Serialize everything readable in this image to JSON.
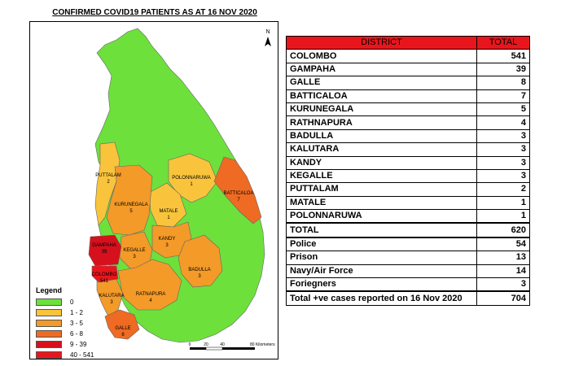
{
  "title": "CONFIRMED COVID19 PATIENTS AS AT 16 NOV 2020",
  "north_label": "N",
  "scale": {
    "ticks": [
      "0",
      "20",
      "40",
      "80 Kilometers"
    ]
  },
  "colors": {
    "c0": "#6de03c",
    "c1": "#f9c43c",
    "c2": "#f39a28",
    "c3": "#ef6a22",
    "c4": "#d6101c",
    "c5": "#e8161c",
    "header": "#e8161c"
  },
  "legend": {
    "title": "Legend",
    "items": [
      {
        "label": "0",
        "color": "#6de03c"
      },
      {
        "label": "1 - 2",
        "color": "#f9c43c"
      },
      {
        "label": "3 - 5",
        "color": "#f39a28"
      },
      {
        "label": "6 - 8",
        "color": "#ef6a22"
      },
      {
        "label": "9 - 39",
        "color": "#d6101c"
      },
      {
        "label": "40 - 541",
        "color": "#e8161c"
      }
    ]
  },
  "map_labels": [
    {
      "name": "PUTTALAM",
      "value": "2"
    },
    {
      "name": "POLONNARUWA",
      "value": "1"
    },
    {
      "name": "BATTICALOA",
      "value": "7"
    },
    {
      "name": "KURUNEGALA",
      "value": "5"
    },
    {
      "name": "MATALE",
      "value": "1"
    },
    {
      "name": "KANDY",
      "value": "3"
    },
    {
      "name": "GAMPAHA",
      "value": "39"
    },
    {
      "name": "KEGALLE",
      "value": "3"
    },
    {
      "name": "BADULLA",
      "value": "3"
    },
    {
      "name": "COLOMBO",
      "value": "541"
    },
    {
      "name": "KALUTARA",
      "value": "3"
    },
    {
      "name": "RATNAPURA",
      "value": "4"
    },
    {
      "name": "GALLE",
      "value": "8"
    }
  ],
  "table": {
    "headers": [
      "DISTRICT",
      "TOTAL"
    ],
    "rows": [
      {
        "district": "COLOMBO",
        "total": "541"
      },
      {
        "district": "GAMPAHA",
        "total": "39"
      },
      {
        "district": "GALLE",
        "total": "8"
      },
      {
        "district": "BATTICALOA",
        "total": "7"
      },
      {
        "district": "KURUNEGALA",
        "total": "5"
      },
      {
        "district": "RATHNAPURA",
        "total": "4"
      },
      {
        "district": "BADULLA",
        "total": "3"
      },
      {
        "district": "KALUTARA",
        "total": "3"
      },
      {
        "district": "KANDY",
        "total": "3"
      },
      {
        "district": "KEGALLE",
        "total": "3"
      },
      {
        "district": "PUTTALAM",
        "total": "2"
      },
      {
        "district": "MATALE",
        "total": "1"
      },
      {
        "district": "POLONNARUWA",
        "total": "1"
      }
    ],
    "total_row": {
      "label": "TOTAL",
      "value": "620"
    },
    "extra_rows": [
      {
        "label": "Police",
        "value": "54"
      },
      {
        "label": "Prison",
        "value": "13"
      },
      {
        "label": "Navy/Air Force",
        "value": "14"
      },
      {
        "label": "Foriegners",
        "value": "3"
      }
    ],
    "grand_row": {
      "label": "Total +ve cases reported on 16 Nov 2020",
      "value": "704"
    }
  }
}
